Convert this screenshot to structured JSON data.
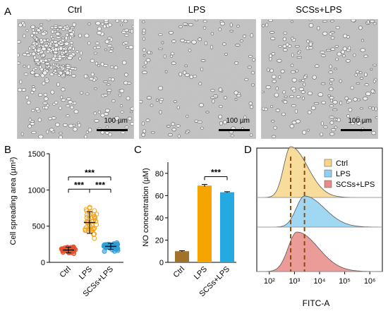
{
  "panels": {
    "a": {
      "label": "A",
      "images": [
        {
          "title": "Ctrl",
          "scale": "100 µm"
        },
        {
          "title": "LPS",
          "scale": "100 µm"
        },
        {
          "title": "SCSs+LPS",
          "scale": "100 µm"
        }
      ]
    },
    "b": {
      "label": "B"
    },
    "c": {
      "label": "C"
    },
    "d": {
      "label": "D"
    }
  },
  "chart_data": [
    {
      "type": "scatter",
      "panel": "B",
      "ylabel": "Cell spreading area (µm²)",
      "ylim": [
        0,
        1500
      ],
      "yticks": [
        0,
        500,
        1000,
        1500
      ],
      "categories": [
        "Ctrl",
        "LPS",
        "SCSs+LPS"
      ],
      "colors": [
        "#e8502a",
        "#f2a31a",
        "#2f9fd6"
      ],
      "means": [
        170,
        550,
        220
      ],
      "errors": [
        40,
        150,
        40
      ],
      "significance": [
        {
          "from": "Ctrl",
          "to": "SCSs+LPS",
          "label": "***"
        },
        {
          "from": "Ctrl",
          "to": "LPS",
          "label": "***"
        },
        {
          "from": "LPS",
          "to": "SCSs+LPS",
          "label": "***"
        }
      ]
    },
    {
      "type": "bar",
      "panel": "C",
      "ylabel": "NO concentration (μM)",
      "ylim": [
        0,
        90
      ],
      "yticks": [
        0,
        20,
        40,
        60,
        80
      ],
      "categories": [
        "Ctrl",
        "LPS",
        "SCSs+LPS"
      ],
      "values": [
        10,
        69,
        63
      ],
      "errors": [
        0.5,
        1,
        0.5
      ],
      "colors": [
        "#a0722a",
        "#f5a500",
        "#24a9e0"
      ],
      "significance": [
        {
          "from": "LPS",
          "to": "SCSs+LPS",
          "label": "***"
        }
      ]
    },
    {
      "type": "area",
      "panel": "D",
      "xlabel": "FITC-A",
      "xscale": "log",
      "xticks": [
        "10²",
        "10³",
        "10⁴",
        "10⁵",
        "10⁶"
      ],
      "series": [
        {
          "name": "Ctrl",
          "color": "#f7d68a",
          "peak_log10": 2.85
        },
        {
          "name": "LPS",
          "color": "#8fd1f2",
          "peak_log10": 3.4
        },
        {
          "name": "SCSs+LPS",
          "color": "#e88a86",
          "peak_log10": 3.1
        }
      ],
      "reference_lines_log10": [
        2.85,
        3.4
      ],
      "legend_position": "top-right"
    }
  ]
}
